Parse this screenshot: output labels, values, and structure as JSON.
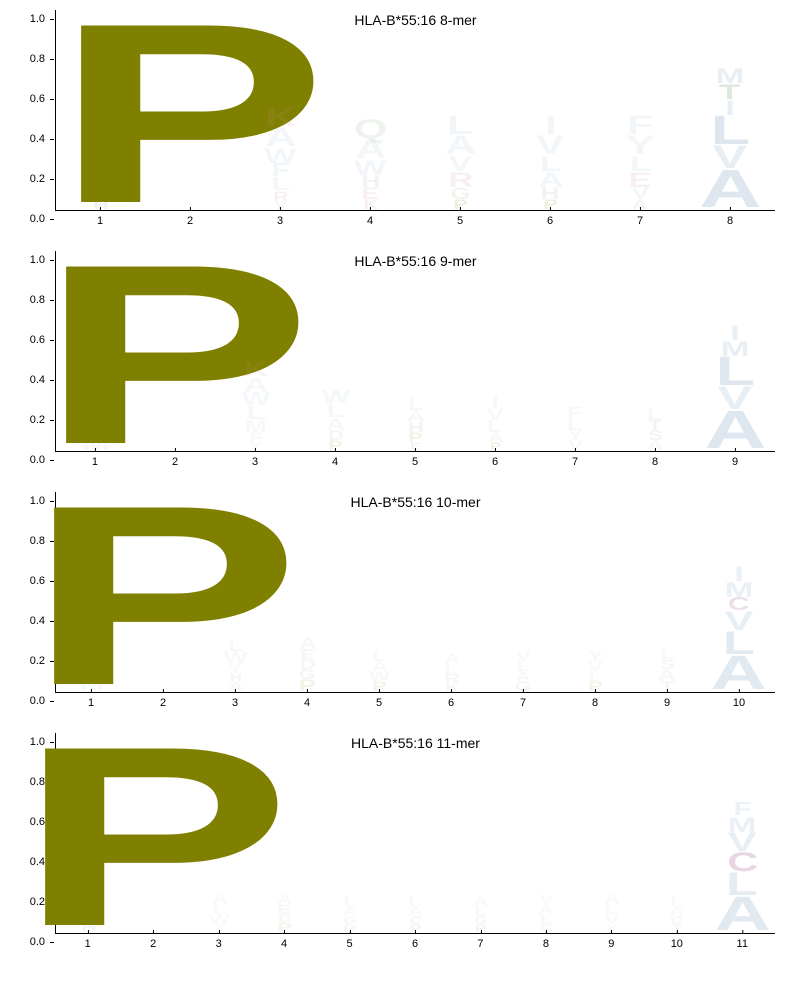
{
  "colors": {
    "P": "#808000",
    "A": "#a3bdd4",
    "L": "#a3bdd4",
    "V": "#a3bdd4",
    "M": "#a3bdd4",
    "I": "#a3bdd4",
    "F": "#a3bdd4",
    "Y": "#a3bdd4",
    "W": "#a3bdd4",
    "C": "#b0729a",
    "G": "#9aa57a",
    "S": "#7aa57a",
    "T": "#7aa57a",
    "N": "#7aa57a",
    "Q": "#7aa57a",
    "D": "#c98a8a",
    "E": "#c98a8a",
    "K": "#c98a8a",
    "R": "#c98a8a",
    "H": "#9090b8"
  },
  "ylim": [
    0,
    1.0
  ],
  "yticks": [
    0.0,
    0.2,
    0.4,
    0.6,
    0.8,
    1.0
  ],
  "axis_fontsize": 11,
  "title_fontsize": 14,
  "panels": [
    {
      "title": "HLA-B*55:16 8-mer",
      "positions": 8,
      "columns": [
        [
          [
            "H",
            0.05,
            0.12
          ],
          [
            "M",
            0.08,
            0.12
          ],
          [
            "Y",
            0.08,
            0.12
          ],
          [
            "L",
            0.08,
            0.12
          ],
          [
            "A",
            0.1,
            0.12
          ],
          [
            "F",
            0.1,
            0.12
          ],
          [
            "I",
            0.1,
            0.12
          ]
        ],
        [
          [
            "P",
            0.95,
            1.0
          ]
        ],
        [
          [
            "V",
            0.04,
            0.12
          ],
          [
            "R",
            0.05,
            0.12
          ],
          [
            "L",
            0.07,
            0.12
          ],
          [
            "F",
            0.07,
            0.12
          ],
          [
            "W",
            0.08,
            0.12
          ],
          [
            "A",
            0.1,
            0.12
          ],
          [
            "K",
            0.1,
            0.12
          ]
        ],
        [
          [
            "K",
            0.05,
            0.12
          ],
          [
            "E",
            0.06,
            0.12
          ],
          [
            "H",
            0.06,
            0.12
          ],
          [
            "W",
            0.08,
            0.12
          ],
          [
            "A",
            0.1,
            0.12
          ],
          [
            "Q",
            0.1,
            0.12
          ]
        ],
        [
          [
            "P",
            0.05,
            0.12
          ],
          [
            "G",
            0.06,
            0.12
          ],
          [
            "R",
            0.08,
            0.12
          ],
          [
            "V",
            0.08,
            0.12
          ],
          [
            "A",
            0.1,
            0.12
          ],
          [
            "L",
            0.1,
            0.12
          ]
        ],
        [
          [
            "P",
            0.05,
            0.12
          ],
          [
            "H",
            0.06,
            0.12
          ],
          [
            "A",
            0.08,
            0.12
          ],
          [
            "L",
            0.08,
            0.12
          ],
          [
            "V",
            0.1,
            0.12
          ],
          [
            "I",
            0.1,
            0.12
          ]
        ],
        [
          [
            "A",
            0.05,
            0.12
          ],
          [
            "V",
            0.06,
            0.12
          ],
          [
            "E",
            0.08,
            0.12
          ],
          [
            "L",
            0.08,
            0.12
          ],
          [
            "Y",
            0.1,
            0.12
          ],
          [
            "F",
            0.1,
            0.12
          ]
        ],
        [
          [
            "A",
            0.2,
            0.35
          ],
          [
            "V",
            0.12,
            0.25
          ],
          [
            "L",
            0.15,
            0.35
          ],
          [
            "I",
            0.08,
            0.25
          ],
          [
            "T",
            0.08,
            0.25
          ],
          [
            "M",
            0.08,
            0.25
          ]
        ]
      ]
    },
    {
      "title": "HLA-B*55:16 9-mer",
      "positions": 9,
      "columns": [
        [
          [
            "M",
            0.08,
            0.1
          ],
          [
            "Y",
            0.06,
            0.1
          ],
          [
            "H",
            0.05,
            0.1
          ],
          [
            "F",
            0.08,
            0.1
          ],
          [
            "L",
            0.08,
            0.1
          ],
          [
            "A",
            0.08,
            0.1
          ]
        ],
        [
          [
            "P",
            0.95,
            1.0
          ]
        ],
        [
          [
            "Y",
            0.04,
            0.1
          ],
          [
            "F",
            0.05,
            0.1
          ],
          [
            "M",
            0.06,
            0.1
          ],
          [
            "L",
            0.07,
            0.1
          ],
          [
            "W",
            0.07,
            0.1
          ],
          [
            "A",
            0.08,
            0.1
          ],
          [
            "K",
            0.08,
            0.1
          ]
        ],
        [
          [
            "P",
            0.05,
            0.1
          ],
          [
            "D",
            0.05,
            0.1
          ],
          [
            "A",
            0.06,
            0.1
          ],
          [
            "L",
            0.07,
            0.1
          ],
          [
            "W",
            0.07,
            0.1
          ]
        ],
        [
          [
            "E",
            0.04,
            0.1
          ],
          [
            "P",
            0.05,
            0.1
          ],
          [
            "H",
            0.05,
            0.1
          ],
          [
            "A",
            0.06,
            0.1
          ],
          [
            "L",
            0.06,
            0.1
          ]
        ],
        [
          [
            "P",
            0.04,
            0.1
          ],
          [
            "A",
            0.05,
            0.1
          ],
          [
            "L",
            0.06,
            0.1
          ],
          [
            "V",
            0.06,
            0.1
          ],
          [
            "I",
            0.06,
            0.1
          ]
        ],
        [
          [
            "V",
            0.05,
            0.1
          ],
          [
            "Y",
            0.05,
            0.1
          ],
          [
            "L",
            0.06,
            0.1
          ],
          [
            "F",
            0.06,
            0.1
          ]
        ],
        [
          [
            "A",
            0.05,
            0.1
          ],
          [
            "S",
            0.05,
            0.1
          ],
          [
            "T",
            0.05,
            0.1
          ],
          [
            "L",
            0.06,
            0.1
          ]
        ],
        [
          [
            "A",
            0.2,
            0.35
          ],
          [
            "V",
            0.12,
            0.25
          ],
          [
            "L",
            0.15,
            0.35
          ],
          [
            "M",
            0.08,
            0.25
          ],
          [
            "I",
            0.08,
            0.25
          ]
        ]
      ]
    },
    {
      "title": "HLA-B*55:16 10-mer",
      "positions": 10,
      "columns": [
        [
          [
            "M",
            0.07,
            0.09
          ],
          [
            "H",
            0.05,
            0.09
          ],
          [
            "F",
            0.07,
            0.09
          ],
          [
            "L",
            0.07,
            0.09
          ],
          [
            "A",
            0.07,
            0.09
          ]
        ],
        [
          [
            "P",
            0.95,
            1.0
          ]
        ],
        [
          [
            "A",
            0.05,
            0.09
          ],
          [
            "H",
            0.04,
            0.09
          ],
          [
            "Y",
            0.05,
            0.09
          ],
          [
            "W",
            0.06,
            0.09
          ],
          [
            "L",
            0.06,
            0.09
          ]
        ],
        [
          [
            "P",
            0.06,
            0.09
          ],
          [
            "G",
            0.05,
            0.09
          ],
          [
            "D",
            0.05,
            0.09
          ],
          [
            "E",
            0.05,
            0.09
          ],
          [
            "A",
            0.06,
            0.09
          ]
        ],
        [
          [
            "P",
            0.05,
            0.09
          ],
          [
            "W",
            0.05,
            0.09
          ],
          [
            "A",
            0.05,
            0.09
          ],
          [
            "L",
            0.05,
            0.09
          ]
        ],
        [
          [
            "K",
            0.04,
            0.09
          ],
          [
            "R",
            0.05,
            0.09
          ],
          [
            "L",
            0.05,
            0.09
          ],
          [
            "A",
            0.05,
            0.09
          ]
        ],
        [
          [
            "G",
            0.05,
            0.09
          ],
          [
            "A",
            0.05,
            0.09
          ],
          [
            "L",
            0.05,
            0.09
          ],
          [
            "V",
            0.05,
            0.09
          ]
        ],
        [
          [
            "P",
            0.05,
            0.09
          ],
          [
            "L",
            0.05,
            0.09
          ],
          [
            "V",
            0.05,
            0.09
          ],
          [
            "Y",
            0.05,
            0.09
          ]
        ],
        [
          [
            "T",
            0.05,
            0.09
          ],
          [
            "A",
            0.06,
            0.09
          ],
          [
            "S",
            0.05,
            0.09
          ],
          [
            "L",
            0.05,
            0.09
          ]
        ],
        [
          [
            "A",
            0.18,
            0.3
          ],
          [
            "L",
            0.12,
            0.3
          ],
          [
            "V",
            0.1,
            0.25
          ],
          [
            "C",
            0.07,
            0.22
          ],
          [
            "M",
            0.08,
            0.22
          ],
          [
            "I",
            0.08,
            0.22
          ]
        ]
      ]
    },
    {
      "title": "HLA-B*55:16 11-mer",
      "positions": 11,
      "columns": [
        [
          [
            "H",
            0.05,
            0.08
          ],
          [
            "M",
            0.06,
            0.08
          ],
          [
            "F",
            0.06,
            0.08
          ],
          [
            "L",
            0.06,
            0.08
          ],
          [
            "A",
            0.06,
            0.08
          ]
        ],
        [
          [
            "P",
            0.95,
            1.0
          ]
        ],
        [
          [
            "Y",
            0.04,
            0.08
          ],
          [
            "W",
            0.05,
            0.08
          ],
          [
            "L",
            0.05,
            0.08
          ],
          [
            "A",
            0.05,
            0.08
          ]
        ],
        [
          [
            "P",
            0.05,
            0.08
          ],
          [
            "D",
            0.04,
            0.08
          ],
          [
            "E",
            0.05,
            0.08
          ],
          [
            "A",
            0.05,
            0.08
          ]
        ],
        [
          [
            "D",
            0.04,
            0.08
          ],
          [
            "G",
            0.04,
            0.08
          ],
          [
            "A",
            0.05,
            0.08
          ],
          [
            "L",
            0.05,
            0.08
          ]
        ],
        [
          [
            "P",
            0.04,
            0.08
          ],
          [
            "C",
            0.04,
            0.08
          ],
          [
            "A",
            0.05,
            0.08
          ],
          [
            "L",
            0.05,
            0.08
          ]
        ],
        [
          [
            "P",
            0.04,
            0.08
          ],
          [
            "G",
            0.04,
            0.08
          ],
          [
            "L",
            0.05,
            0.08
          ],
          [
            "A",
            0.05,
            0.08
          ]
        ],
        [
          [
            "G",
            0.04,
            0.08
          ],
          [
            "L",
            0.05,
            0.08
          ],
          [
            "A",
            0.05,
            0.08
          ],
          [
            "V",
            0.05,
            0.08
          ]
        ],
        [
          [
            "Y",
            0.04,
            0.08
          ],
          [
            "V",
            0.05,
            0.08
          ],
          [
            "L",
            0.05,
            0.08
          ],
          [
            "A",
            0.05,
            0.08
          ]
        ],
        [
          [
            "T",
            0.04,
            0.08
          ],
          [
            "C",
            0.04,
            0.08
          ],
          [
            "A",
            0.05,
            0.08
          ],
          [
            "L",
            0.05,
            0.08
          ]
        ],
        [
          [
            "A",
            0.18,
            0.3
          ],
          [
            "L",
            0.12,
            0.28
          ],
          [
            "C",
            0.1,
            0.28
          ],
          [
            "V",
            0.1,
            0.25
          ],
          [
            "M",
            0.08,
            0.22
          ],
          [
            "F",
            0.07,
            0.2
          ]
        ]
      ]
    }
  ]
}
